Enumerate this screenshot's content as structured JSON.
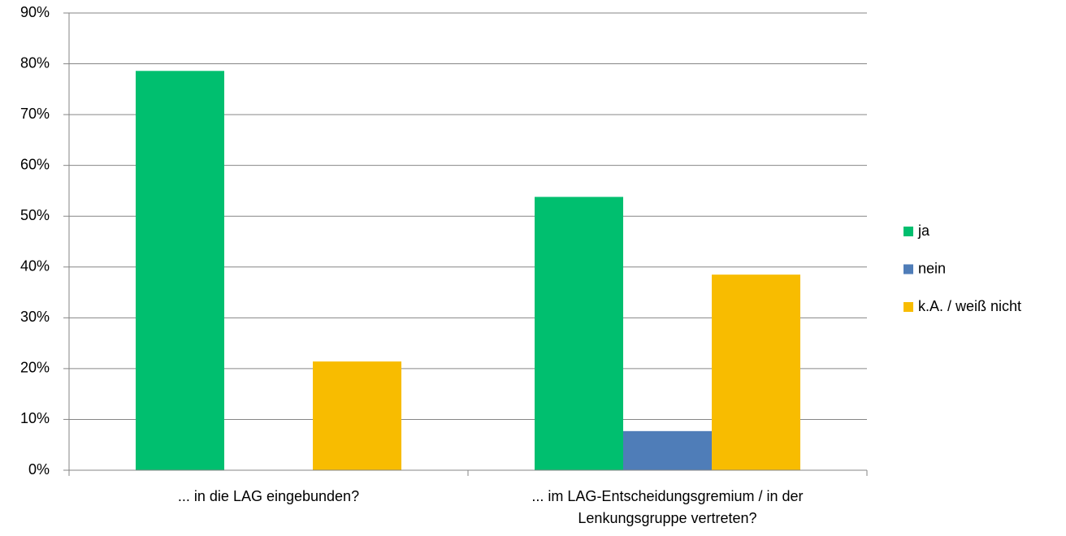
{
  "chart_data": {
    "type": "bar",
    "categories": [
      "... in die LAG eingebunden?",
      "... im LAG-Entscheidungsgremium / in der Lenkungsgruppe vertreten?"
    ],
    "series": [
      {
        "name": "ja",
        "color": "#00bf6f",
        "values": [
          78.6,
          53.8
        ]
      },
      {
        "name": "nein",
        "color": "#4f7db8",
        "values": [
          0,
          7.7
        ]
      },
      {
        "name": "k.A. / weiß nicht",
        "color": "#f8bc00",
        "values": [
          21.4,
          38.5
        ]
      }
    ],
    "ylim": [
      0,
      90
    ],
    "yticks": [
      {
        "value": 0,
        "label": "0%"
      },
      {
        "value": 10,
        "label": "10%"
      },
      {
        "value": 20,
        "label": "20%"
      },
      {
        "value": 30,
        "label": "30%"
      },
      {
        "value": 40,
        "label": "40%"
      },
      {
        "value": 50,
        "label": "50%"
      },
      {
        "value": 60,
        "label": "60%"
      },
      {
        "value": 70,
        "label": "70%"
      },
      {
        "value": 80,
        "label": "80%"
      },
      {
        "value": 90,
        "label": "90%"
      }
    ],
    "grid": true,
    "legend": "right"
  }
}
